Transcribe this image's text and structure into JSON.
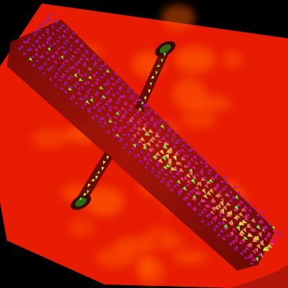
{
  "scene": {
    "subject": "flow-visualization",
    "background_color": "#000000",
    "plane_color": "#e81c00",
    "plane_highlight_color": "#ff5a00",
    "channel_shadow_color": "#3a0400",
    "vector_colors": {
      "slow": "#7a1fd0",
      "mid": "#d2147a",
      "fast": "#f0ff40",
      "accent": "#7fe04a"
    }
  }
}
